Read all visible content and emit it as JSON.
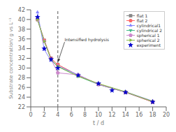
{
  "chart_data": {
    "type": "line",
    "title": "",
    "xlabel": "t / d",
    "ylabel": "Substrate concentration/ g vs L⁻¹",
    "xlim": [
      0,
      20
    ],
    "ylim": [
      22,
      42
    ],
    "xticks": [
      0,
      2,
      4,
      6,
      8,
      10,
      12,
      14,
      16,
      18,
      20
    ],
    "yticks": [
      22,
      24,
      26,
      28,
      30,
      32,
      34,
      36,
      38,
      40,
      42
    ],
    "grid": false,
    "legend": "upper right",
    "vlines": [
      4
    ],
    "annotations": [
      {
        "text": "Intensified hydrolysis",
        "x": 4.0,
        "y": 31.2,
        "text_x": 5.0,
        "text_y": 35.5
      }
    ],
    "series": [
      {
        "name": "flat 1",
        "color": "#888888",
        "marker": "square",
        "line_style": "solid",
        "x": [
          1,
          2,
          3,
          4,
          7,
          10,
          14,
          18
        ],
        "values": [
          40.0,
          35.7,
          32.0,
          30.7,
          28.5,
          26.7,
          25.0,
          23.0
        ]
      },
      {
        "name": "flat 2",
        "color": "#ff6666",
        "marker": "circle",
        "line_style": "solid",
        "x": [
          1,
          2,
          3,
          4,
          7,
          10,
          14,
          18
        ],
        "values": [
          40.0,
          35.7,
          32.0,
          30.7,
          28.5,
          26.7,
          25.0,
          23.0
        ]
      },
      {
        "name": "cylindrical1",
        "color": "#8888ff",
        "marker": "triangle_up",
        "line_style": "solid",
        "x": [
          1,
          2,
          3,
          4,
          7,
          10,
          14,
          18
        ],
        "values": [
          41.5,
          33.8,
          31.5,
          30.4,
          28.6,
          26.6,
          25.1,
          23.2
        ]
      },
      {
        "name": "cylindrical 2",
        "color": "#44bb88",
        "marker": "triangle_down",
        "line_style": "solid",
        "x": [
          1,
          2,
          3,
          4,
          7,
          10,
          14,
          18
        ],
        "values": [
          40.0,
          35.5,
          31.8,
          30.3,
          28.3,
          26.6,
          25.0,
          23.1
        ]
      },
      {
        "name": "spherical 1",
        "color": "#cc88cc",
        "marker": "pentagon",
        "line_style": "solid",
        "x": [
          1,
          2,
          3,
          4,
          7,
          10,
          14,
          18
        ],
        "values": [
          40.0,
          35.5,
          31.8,
          29.0,
          28.6,
          26.6,
          25.0,
          23.1
        ]
      },
      {
        "name": "spherical 2",
        "color": "#88bb44",
        "marker": "triangle_right",
        "line_style": "solid",
        "x": [
          1,
          2,
          3,
          4,
          7,
          10,
          14,
          18
        ],
        "values": [
          40.0,
          35.5,
          31.8,
          30.3,
          28.3,
          26.8,
          25.1,
          23.1
        ]
      },
      {
        "name": "experiment",
        "color": "#0000cc",
        "marker": "star",
        "line_style": "none",
        "x": [
          1,
          2,
          3,
          4,
          7,
          10,
          12,
          14,
          18
        ],
        "values": [
          40.5,
          34.0,
          31.8,
          30.0,
          28.5,
          26.8,
          25.4,
          25.0,
          23.0
        ]
      }
    ]
  }
}
